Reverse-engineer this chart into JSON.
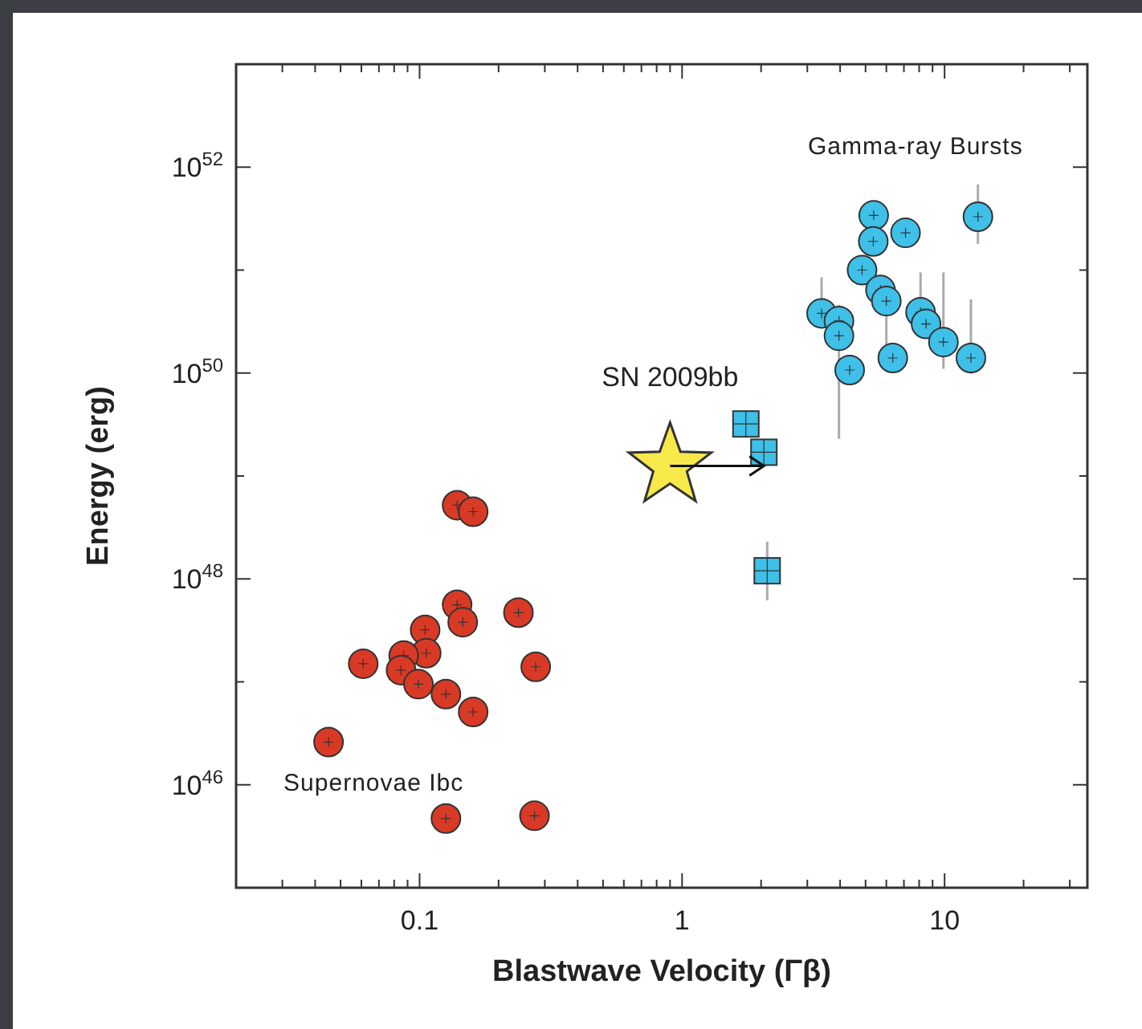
{
  "chart_data": {
    "type": "scatter",
    "xlabel": "Blastwave Velocity (Γβ)",
    "ylabel": "Energy (erg)",
    "log": "xy",
    "xlim": [
      0.02,
      35
    ],
    "ylim": [
      1e+45,
      1e+53
    ],
    "xticks": [
      {
        "value": 0.02,
        "label": null
      },
      {
        "value": 0.03,
        "label": null
      },
      {
        "value": 0.04,
        "label": null
      },
      {
        "value": 0.05,
        "label": null
      },
      {
        "value": 0.06,
        "label": null
      },
      {
        "value": 0.07,
        "label": null
      },
      {
        "value": 0.08,
        "label": null
      },
      {
        "value": 0.09,
        "label": null
      },
      0.1,
      {
        "value": 0.2,
        "label": null
      },
      {
        "value": 0.3,
        "label": null
      },
      {
        "value": 0.4,
        "label": null
      },
      {
        "value": 0.5,
        "label": null
      },
      {
        "value": 0.6,
        "label": null
      },
      {
        "value": 0.7,
        "label": null
      },
      {
        "value": 0.8,
        "label": null
      },
      {
        "value": 0.9,
        "label": null
      },
      1,
      {
        "value": 2,
        "label": null
      },
      {
        "value": 3,
        "label": null
      },
      {
        "value": 4,
        "label": null
      },
      {
        "value": 5,
        "label": null
      },
      {
        "value": 6,
        "label": null
      },
      {
        "value": 7,
        "label": null
      },
      {
        "value": 8,
        "label": null
      },
      {
        "value": 9,
        "label": null
      },
      10,
      {
        "value": 20,
        "label": null
      },
      {
        "value": 30,
        "label": null
      }
    ],
    "yticks": [
      {
        "value": 1e+46,
        "label": "10$^{46}$"
      },
      {
        "value": 1e+47,
        "label": null
      },
      {
        "value": 1e+48,
        "label": "10$^{48}$"
      },
      {
        "value": 1e+49,
        "label": null
      },
      {
        "value": 1e+50,
        "label": "10$^{50}$"
      },
      {
        "value": 1e+51,
        "label": null
      },
      {
        "value": 1e+52,
        "label": "10$^{52}$"
      }
    ],
    "series": [
      {
        "name": "Supernovae Ibc",
        "color": "#d93a26",
        "marker": "circle",
        "x": [
          0.139,
          0.16,
          0.139,
          0.146,
          0.238,
          0.105,
          0.106,
          0.087,
          0.085,
          0.061,
          0.277,
          0.099,
          0.126,
          0.16,
          0.045,
          0.126,
          0.274
        ],
        "values": [
          5.2e+48,
          4.5e+48,
          5.6e+47,
          3.8e+47,
          4.7e+47,
          3.2e+47,
          1.9e+47,
          1.8e+47,
          1.3e+47,
          1.5e+47,
          1.4e+47,
          9.5e+46,
          7.6e+46,
          5.1e+46,
          2.6e+46,
          4.7e+45,
          5e+45
        ]
      },
      {
        "name": "Gamma-ray Bursts",
        "color": "#3ec0e8",
        "marker": "circle",
        "x": [
          5.37,
          5.35,
          7.1,
          13.4,
          4.85,
          5.7,
          6.0,
          3.4,
          3.96,
          3.96,
          8.1,
          8.5,
          9.9,
          12.6,
          6.35,
          4.35
        ],
        "values": [
          3.4e+51,
          1.9e+51,
          2.3e+51,
          3.3e+51,
          1e+51,
          6.4e+50,
          5e+50,
          3.8e+50,
          3.2e+50,
          2.3e+50,
          3.9e+50,
          3e+50,
          2e+50,
          1.4e+50,
          1.4e+50,
          1.07e+50
        ],
        "errors": [
          null,
          null,
          null,
          [
            1.8e+51,
            6.8e+51
          ],
          null,
          null,
          [
            1.8e+50,
            5e+50
          ],
          [
            3.8e+50,
            8.5e+50
          ],
          null,
          [
            2.3e+49,
            4.6e+50
          ],
          [
            3.9e+50,
            9.5e+50
          ],
          null,
          [
            1.1e+50,
            9.5e+50
          ],
          [
            9.8e+49,
            5.2e+50
          ],
          null,
          null
        ]
      },
      {
        "color": "#3ec0e8",
        "marker": "square",
        "x": [
          1.75,
          2.05,
          2.11
        ],
        "values": [
          3.2e+49,
          1.7e+49,
          1.2e+48
        ],
        "errors": [
          null,
          null,
          [
            6.2e+47,
            2.3e+48
          ]
        ]
      },
      {
        "name": "SN 2009bb",
        "color": "#f8e94a",
        "marker": "star",
        "x": [
          0.9
        ],
        "values": [
          1.25e+49
        ]
      }
    ]
  }
}
